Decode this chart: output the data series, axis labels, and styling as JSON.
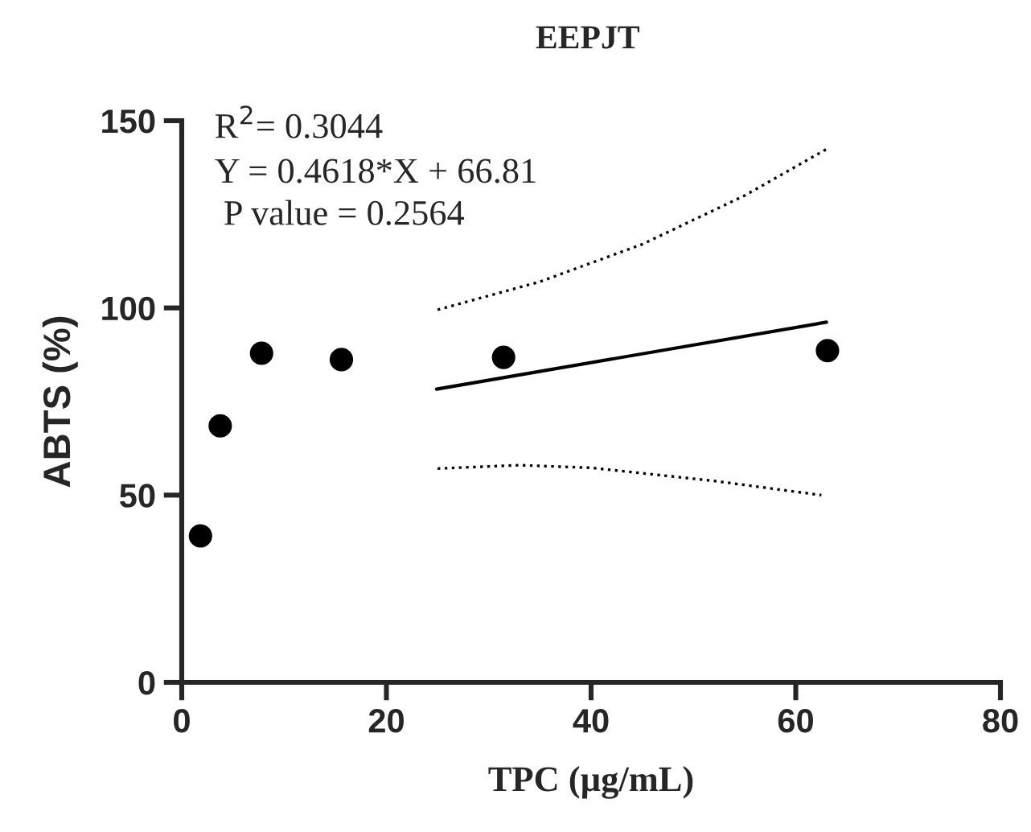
{
  "chart_data": {
    "type": "scatter",
    "title": "EEPJT",
    "xlabel": "TPC (µg/mL)",
    "ylabel": "ABTS (%)",
    "xlim": [
      0,
      80
    ],
    "xticks": [
      0,
      20,
      40,
      60,
      80
    ],
    "ylim": [
      0,
      150
    ],
    "yticks": [
      0,
      50,
      100,
      150
    ],
    "grid": false,
    "legend": false,
    "annotations": [
      "R$^{2}$= 0.3044",
      "Y = 0.4618*X + 66.81",
      " P value = 0.2564"
    ],
    "series": [
      {
        "color": "#000000",
        "marker": "circle",
        "x": [
          1.83,
          3.76,
          7.8,
          15.6,
          31.45,
          63.1
        ],
        "values": [
          39.1,
          68.5,
          87.9,
          86.2,
          86.8,
          88.6
        ]
      },
      {
        "type": "line",
        "color": "#000000",
        "line_style": "solid",
        "x": [
          24.9,
          63.0
        ],
        "values": [
          78.3,
          96.2
        ]
      },
      {
        "type": "line",
        "color": "#000000",
        "line_style": "dotted",
        "x": [
          25,
          35,
          45,
          55,
          63
        ],
        "values": [
          99.5,
          107,
          117,
          130,
          142.4
        ]
      },
      {
        "type": "line",
        "color": "#000000",
        "line_style": "dotted",
        "x": [
          25,
          33,
          40,
          52,
          62.5
        ],
        "values": [
          57.1,
          58,
          57.3,
          53.8,
          50
        ]
      }
    ]
  }
}
